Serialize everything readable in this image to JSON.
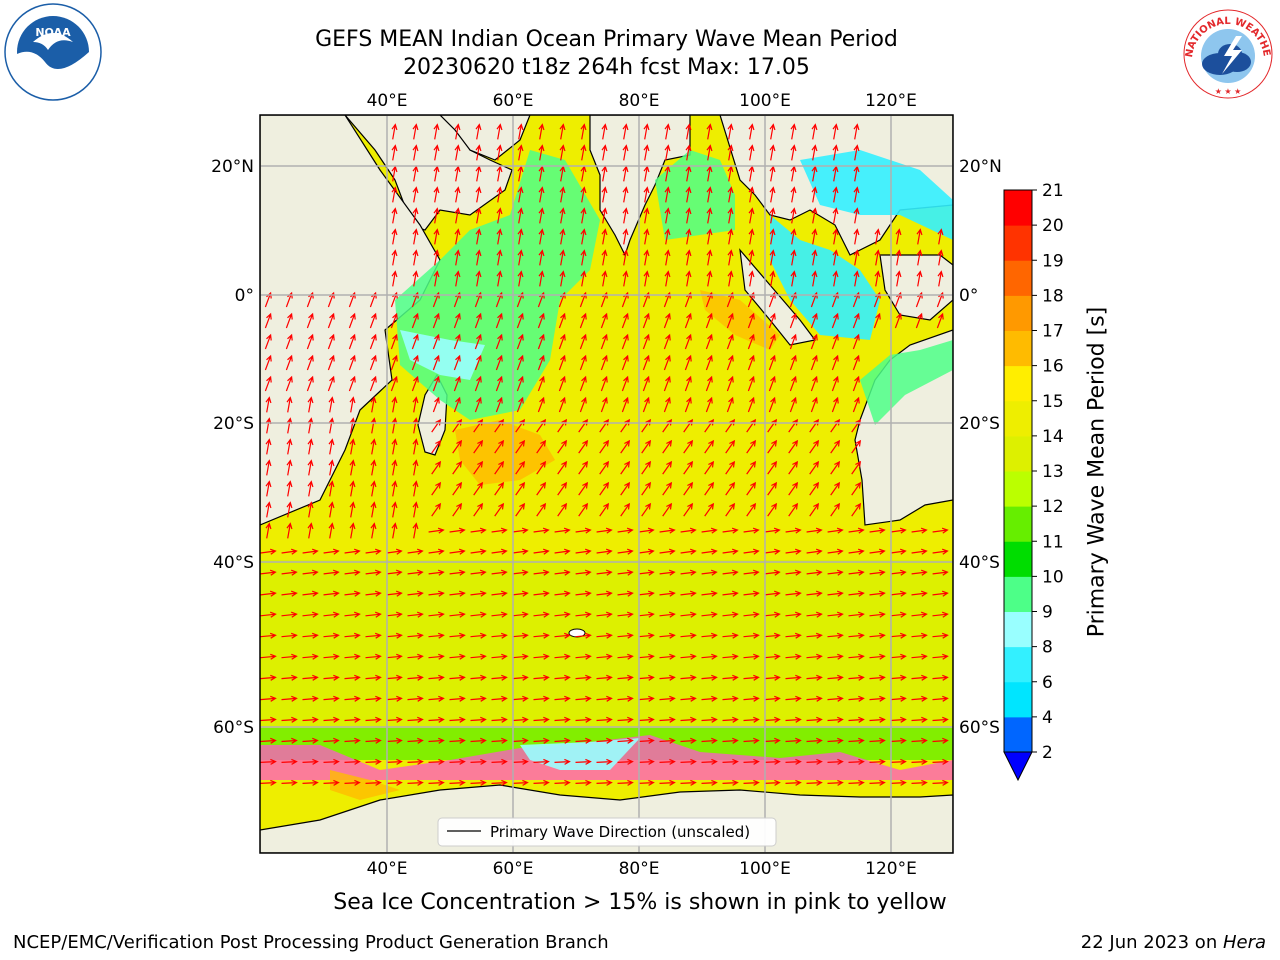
{
  "header": {
    "title_line1": "GEFS MEAN Indian Ocean Primary Wave Mean Period",
    "title_line2": "20230620 t18z 264h fcst   Max: 17.05"
  },
  "logos": {
    "left": {
      "name": "NOAA",
      "ring_text": "NATIONAL OCEANIC AND ATMOSPHERIC ADMINISTRATION · U.S. DEPARTMENT OF COMMERCE",
      "colors": {
        "sky": "#1b5ea8",
        "wave": "#ffffff"
      }
    },
    "right": {
      "name": "NATIONAL WEATHER SERVICE",
      "colors": {
        "ring": "#e3282b",
        "cloud": "#1c4f9c"
      }
    }
  },
  "map": {
    "region": "Indian Ocean",
    "lon_range": [
      20,
      130
    ],
    "lat_range": [
      -72,
      27
    ],
    "lon_ticks": [
      "40°E",
      "60°E",
      "80°E",
      "100°E",
      "120°E"
    ],
    "lat_ticks": [
      "20°N",
      "0°",
      "20°S",
      "40°S",
      "60°S"
    ],
    "grid": true,
    "land_color": "#efefdf",
    "ice_shelf_color": "#ffffff",
    "vector_color": "#ff0000",
    "legend_entry": "Primary Wave Direction (unscaled)",
    "legend_placement": "bottom-center"
  },
  "colorbar": {
    "label": "Primary Wave Mean Period [s]",
    "tick_labels": [
      "2",
      "4",
      "6",
      "8",
      "9",
      "10",
      "11",
      "12",
      "13",
      "14",
      "15",
      "16",
      "17",
      "18",
      "19",
      "20",
      "21"
    ],
    "colors": [
      "#0066ff",
      "#00e5ff",
      "#33f0ff",
      "#99ffff",
      "#4dff88",
      "#00dd00",
      "#66ee00",
      "#bbff00",
      "#ddf000",
      "#eeee00",
      "#ffee00",
      "#ffbb00",
      "#ff9900",
      "#ff6600",
      "#ff3300",
      "#ff0000"
    ],
    "extend": "min",
    "under_color": "#0000ff"
  },
  "caption": "Sea Ice Concentration > 15% is shown in pink to yellow",
  "footer": {
    "left": "NCEP/EMC/Verification Post Processing Product Generation Branch",
    "right_date": "22 Jun 2023 on ",
    "right_host": "Hera"
  }
}
